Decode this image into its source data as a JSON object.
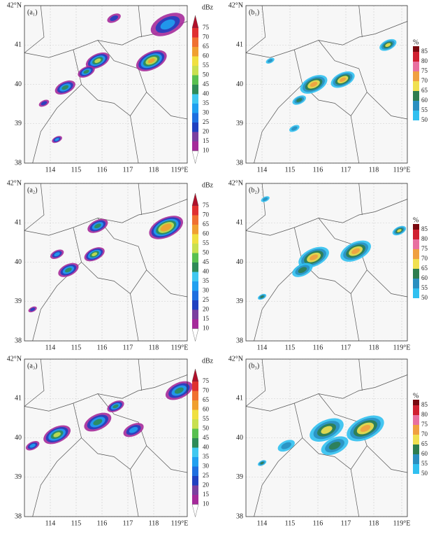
{
  "panels": [
    {
      "label": "(a₁)",
      "kind": "dbz"
    },
    {
      "label": "(b₁)",
      "kind": "pct"
    },
    {
      "label": "(a₂)",
      "kind": "dbz"
    },
    {
      "label": "(b₂)",
      "kind": "pct"
    },
    {
      "label": "(a₃)",
      "kind": "dbz"
    },
    {
      "label": "(b₃)",
      "kind": "pct"
    }
  ],
  "x_ticks": [
    "114",
    "115",
    "116",
    "117",
    "118",
    "119°E"
  ],
  "y_ticks": [
    "42°N",
    "41",
    "40",
    "39",
    "38"
  ],
  "dbz": {
    "unit": "dBz",
    "levels": [
      "75",
      "70",
      "65",
      "60",
      "55",
      "50",
      "45",
      "40",
      "35",
      "30",
      "25",
      "20",
      "15",
      "10"
    ],
    "colors": [
      "#b0102a",
      "#e03030",
      "#f07030",
      "#f0a030",
      "#f0e040",
      "#c8e050",
      "#58c050",
      "#2e8b57",
      "#40c8f0",
      "#20a0f0",
      "#1e6fe0",
      "#2040c0",
      "#7b3fa0",
      "#a52a9a",
      "#c050b0"
    ]
  },
  "pct": {
    "unit": "%",
    "levels": [
      "85",
      "80",
      "75",
      "70",
      "65",
      "60",
      "55",
      "50"
    ],
    "colors": [
      "#7a0a10",
      "#d02030",
      "#e870a0",
      "#f0a040",
      "#f0e050",
      "#2e7d4f",
      "#2a8fc0",
      "#30c0f0"
    ]
  }
}
